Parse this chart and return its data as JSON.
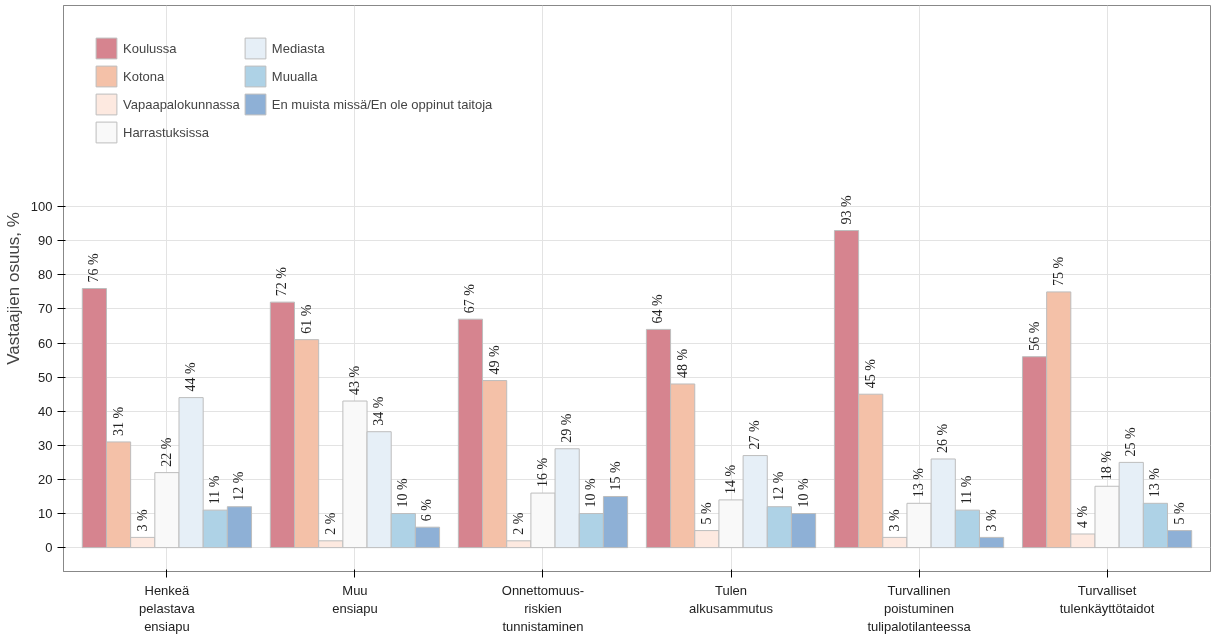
{
  "chart_data": {
    "type": "bar",
    "ylabel": "Vastaajien osuus, %",
    "categories": [
      "Henkeä\npelastava\nensiapu",
      "Muu\nensiapu",
      "Onnettomuus-\nriskien\ntunnistaminen",
      "Tulen\nalkusammutus",
      "Turvallinen\npoistuminen\ntulipalotilanteessa",
      "Turvalliset\ntulenkäyttötaidot"
    ],
    "series": [
      {
        "name": "Koulussa",
        "color": "#d6848f",
        "values": [
          76,
          72,
          67,
          64,
          93,
          56
        ],
        "value_labels": [
          "76 %",
          "72 %",
          "67 %",
          "64 %",
          "93 %",
          "56 %"
        ]
      },
      {
        "name": "Kotona",
        "color": "#f4c1a8",
        "values": [
          31,
          61,
          49,
          48,
          45,
          75
        ],
        "value_labels": [
          "31 %",
          "61 %",
          "49 %",
          "48 %",
          "45 %",
          "75 %"
        ]
      },
      {
        "name": "Vapaapalokunnassa",
        "color": "#fde9e0",
        "values": [
          3,
          2,
          2,
          5,
          3,
          4
        ],
        "value_labels": [
          "3 %",
          "2 %",
          "2 %",
          "5 %",
          "3 %",
          "4 %"
        ]
      },
      {
        "name": "Harrastuksissa",
        "color": "#f9f9f9",
        "values": [
          22,
          43,
          16,
          14,
          13,
          18
        ],
        "value_labels": [
          "22 %",
          "43 %",
          "16 %",
          "14 %",
          "13 %",
          "18 %"
        ]
      },
      {
        "name": "Mediasta",
        "color": "#e6eff7",
        "values": [
          44,
          34,
          29,
          27,
          26,
          25
        ],
        "value_labels": [
          "44 %",
          "34 %",
          "29 %",
          "27 %",
          "26 %",
          "25 %"
        ]
      },
      {
        "name": "Muualla",
        "color": "#aed2e6",
        "values": [
          11,
          10,
          10,
          12,
          11,
          13
        ],
        "value_labels": [
          "11 %",
          "10 %",
          "10 %",
          "12 %",
          "11 %",
          "13 %"
        ]
      },
      {
        "name": "En muista missä/En ole oppinut taitoja",
        "color": "#8eb0d6",
        "values": [
          12,
          6,
          15,
          10,
          3,
          5
        ],
        "value_labels": [
          "12 %",
          "6 %",
          "15 %",
          "10 %",
          "3 %",
          "5 %"
        ]
      }
    ],
    "ylim": [
      -7,
      159
    ],
    "yticks": [
      0,
      10,
      20,
      30,
      40,
      50,
      60,
      70,
      80,
      90,
      100
    ],
    "grid": true,
    "legend": "top left"
  }
}
